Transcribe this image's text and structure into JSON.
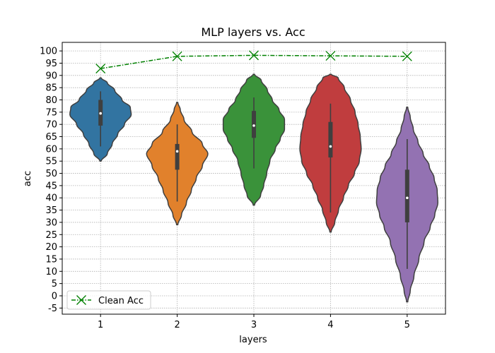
{
  "chart_data": {
    "type": "violin",
    "title": "MLP layers vs. Acc",
    "xlabel": "layers",
    "ylabel": "acc",
    "categories": [
      "1",
      "2",
      "3",
      "4",
      "5"
    ],
    "ylim": [
      -7.5,
      103.5
    ],
    "yticks": [
      -5,
      0,
      5,
      10,
      15,
      20,
      25,
      30,
      35,
      40,
      45,
      50,
      55,
      60,
      65,
      70,
      75,
      80,
      85,
      90,
      95,
      100
    ],
    "grid": true,
    "legend_position": "lower-left",
    "violins": [
      {
        "category": "1",
        "color": "#3274a1",
        "min": 55,
        "max": 89,
        "q1": 69.5,
        "median": 74.5,
        "q3": 80,
        "whisker_low": 61,
        "whisker_high": 83.5,
        "profile": [
          [
            55,
            0.02
          ],
          [
            58,
            0.22
          ],
          [
            62,
            0.38
          ],
          [
            66,
            0.56
          ],
          [
            70,
            0.78
          ],
          [
            74,
            1.0
          ],
          [
            77,
            0.97
          ],
          [
            80,
            0.7
          ],
          [
            84,
            0.46
          ],
          [
            87,
            0.22
          ],
          [
            89,
            0.02
          ]
        ]
      },
      {
        "category": "2",
        "color": "#e1812c",
        "min": 29,
        "max": 79,
        "q1": 51.5,
        "median": 59,
        "q3": 62,
        "whisker_low": 38.5,
        "whisker_high": 70,
        "profile": [
          [
            29,
            0.02
          ],
          [
            33,
            0.14
          ],
          [
            38,
            0.3
          ],
          [
            43,
            0.46
          ],
          [
            48,
            0.62
          ],
          [
            53,
            0.82
          ],
          [
            58,
            1.0
          ],
          [
            62,
            0.82
          ],
          [
            67,
            0.48
          ],
          [
            72,
            0.22
          ],
          [
            76,
            0.1
          ],
          [
            79,
            0.02
          ]
        ]
      },
      {
        "category": "3",
        "color": "#3a923a",
        "min": 37,
        "max": 90.5,
        "q1": 64.5,
        "median": 69.5,
        "q3": 75.5,
        "whisker_low": 52,
        "whisker_high": 81,
        "profile": [
          [
            37,
            0.02
          ],
          [
            41,
            0.22
          ],
          [
            45,
            0.32
          ],
          [
            50,
            0.42
          ],
          [
            55,
            0.52
          ],
          [
            60,
            0.7
          ],
          [
            64,
            0.86
          ],
          [
            68,
            1.0
          ],
          [
            72,
            1.0
          ],
          [
            76,
            0.82
          ],
          [
            80,
            0.6
          ],
          [
            84,
            0.44
          ],
          [
            88,
            0.24
          ],
          [
            90.5,
            0.02
          ]
        ]
      },
      {
        "category": "4",
        "color": "#c03d3e",
        "min": 26,
        "max": 90.5,
        "q1": 56.5,
        "median": 61,
        "q3": 71,
        "whisker_low": 34,
        "whisker_high": 78.5,
        "profile": [
          [
            26,
            0.02
          ],
          [
            30,
            0.14
          ],
          [
            35,
            0.26
          ],
          [
            40,
            0.42
          ],
          [
            45,
            0.58
          ],
          [
            50,
            0.78
          ],
          [
            55,
            0.94
          ],
          [
            60,
            1.0
          ],
          [
            65,
            0.97
          ],
          [
            70,
            0.9
          ],
          [
            75,
            0.8
          ],
          [
            80,
            0.65
          ],
          [
            85,
            0.45
          ],
          [
            89,
            0.25
          ],
          [
            90.5,
            0.02
          ]
        ]
      },
      {
        "category": "5",
        "color": "#9372b2",
        "min": -2.5,
        "max": 77,
        "q1": 30,
        "median": 40,
        "q3": 51.5,
        "whisker_low": 11,
        "whisker_high": 64,
        "profile": [
          [
            -2.5,
            0.02
          ],
          [
            2,
            0.1
          ],
          [
            8,
            0.22
          ],
          [
            15,
            0.38
          ],
          [
            22,
            0.55
          ],
          [
            28,
            0.75
          ],
          [
            33,
            0.9
          ],
          [
            38,
            1.0
          ],
          [
            43,
            0.98
          ],
          [
            48,
            0.88
          ],
          [
            53,
            0.72
          ],
          [
            58,
            0.52
          ],
          [
            63,
            0.35
          ],
          [
            68,
            0.2
          ],
          [
            73,
            0.1
          ],
          [
            77,
            0.02
          ]
        ]
      }
    ],
    "series": [
      {
        "name": "Clean Acc",
        "color": "#008000",
        "style": "dash-dot",
        "marker": "x",
        "x": [
          "1",
          "2",
          "3",
          "4",
          "5"
        ],
        "values": [
          92.8,
          97.8,
          98.2,
          98.0,
          97.8
        ]
      }
    ]
  }
}
